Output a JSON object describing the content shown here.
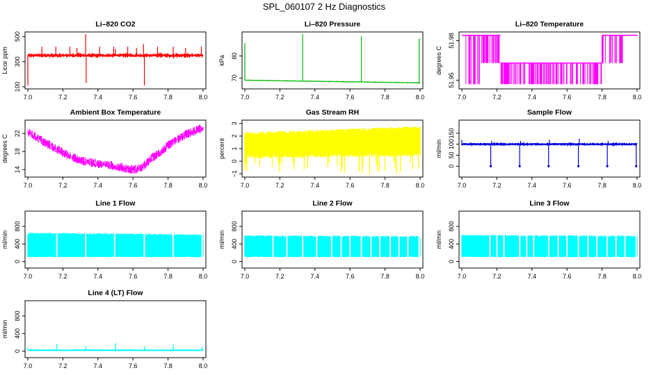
{
  "figure_title": "SPL_060107  2 Hz Diagnostics",
  "chart_data": [
    {
      "type": "line",
      "title": "Li–820 CO2",
      "ylabel": "Licor ppm",
      "color": "#ff0000",
      "xlim": [
        7.0,
        8.0
      ],
      "ylim": [
        100,
        520
      ],
      "xticks": [
        "7.0",
        "7.2",
        "7.4",
        "7.6",
        "7.8",
        "8.0"
      ],
      "yticks": [
        {
          "v": 100,
          "label": "100"
        },
        {
          "v": 300,
          "label": "300"
        },
        {
          "v": 500,
          "label": "500"
        }
      ],
      "series": {
        "baseline": 350,
        "noise": 12,
        "spikes": [
          {
            "x": 7.0,
            "y": 110
          },
          {
            "x": 7.08,
            "y": 420
          },
          {
            "x": 7.16,
            "y": 420
          },
          {
            "x": 7.24,
            "y": 420
          },
          {
            "x": 7.28,
            "y": 410
          },
          {
            "x": 7.33,
            "y": 520
          },
          {
            "x": 7.333,
            "y": 130
          },
          {
            "x": 7.41,
            "y": 420
          },
          {
            "x": 7.49,
            "y": 420
          },
          {
            "x": 7.5,
            "y": 400
          },
          {
            "x": 7.57,
            "y": 420
          },
          {
            "x": 7.62,
            "y": 410
          },
          {
            "x": 7.66,
            "y": 440
          },
          {
            "x": 7.665,
            "y": 110
          },
          {
            "x": 7.74,
            "y": 420
          },
          {
            "x": 7.83,
            "y": 420
          },
          {
            "x": 7.9,
            "y": 410
          },
          {
            "x": 7.99,
            "y": 420
          }
        ]
      }
    },
    {
      "type": "line",
      "title": "Li–820 Pressure",
      "ylabel": "kPa",
      "color": "#00bb00",
      "xlim": [
        7.0,
        8.0
      ],
      "ylim": [
        66,
        90
      ],
      "xticks": [
        "7.0",
        "7.2",
        "7.4",
        "7.6",
        "7.8",
        "8.0"
      ],
      "yticks": [
        {
          "v": 70,
          "label": "70"
        },
        {
          "v": 80,
          "label": "80"
        }
      ],
      "series": {
        "start": 69.0,
        "end": 67.8,
        "noise": 0.2,
        "spikes": [
          {
            "x": 7.0,
            "y": 86
          },
          {
            "x": 7.33,
            "y": 90
          },
          {
            "x": 7.665,
            "y": 89
          },
          {
            "x": 7.995,
            "y": 88
          }
        ]
      }
    },
    {
      "type": "line",
      "title": "Li–820 Temperature",
      "ylabel": "degrees C",
      "color": "#ff00ff",
      "xlim": [
        7.0,
        8.0
      ],
      "ylim": [
        51.945,
        51.985
      ],
      "xticks": [
        "7.0",
        "7.2",
        "7.4",
        "7.6",
        "7.8",
        "8.0"
      ],
      "yticks": [
        {
          "v": 51.95,
          "label": "51.95"
        },
        {
          "v": 51.98,
          "label": "51.98"
        }
      ],
      "series": {
        "levels": [
          51.947,
          51.963,
          51.984
        ],
        "segments": [
          {
            "from": 7.0,
            "to": 7.01,
            "level": 2
          },
          {
            "from": 7.02,
            "to": 7.1,
            "level": 2,
            "alt": 0
          },
          {
            "from": 7.1,
            "to": 7.22,
            "level": 2,
            "alt": 1
          },
          {
            "from": 7.22,
            "to": 7.8,
            "level": 1,
            "alt": 0
          },
          {
            "from": 7.8,
            "to": 7.92,
            "level": 2,
            "alt": 1
          },
          {
            "from": 7.92,
            "to": 8.0,
            "level": 2
          }
        ]
      }
    },
    {
      "type": "line",
      "title": "Ambient Box Temperature",
      "ylabel": "degrees C",
      "color": "#ff00ff",
      "xlim": [
        7.0,
        8.0
      ],
      "ylim": [
        12.8,
        24.5
      ],
      "xticks": [
        "7.0",
        "7.2",
        "7.4",
        "7.6",
        "7.8",
        "8.0"
      ],
      "yticks": [
        {
          "v": 14,
          "label": "14"
        },
        {
          "v": 18,
          "label": "18"
        },
        {
          "v": 22,
          "label": "22"
        }
      ],
      "series": {
        "x": [
          7.0,
          7.1,
          7.2,
          7.3,
          7.4,
          7.5,
          7.6,
          7.65,
          7.7,
          7.8,
          7.9,
          8.0
        ],
        "y": [
          22.5,
          20.2,
          18.0,
          16.2,
          15.5,
          15.0,
          14.2,
          14.6,
          16.5,
          19.5,
          22.0,
          23.5
        ],
        "noise": 1.0
      }
    },
    {
      "type": "area",
      "title": "Gas Stream RH",
      "ylabel": "percent",
      "color": "#ffff00",
      "xlim": [
        7.0,
        8.0
      ],
      "ylim": [
        -1.1,
        3.1
      ],
      "xticks": [
        "7.0",
        "7.2",
        "7.4",
        "7.6",
        "7.8",
        "8.0"
      ],
      "yticks": [
        {
          "v": -1,
          "label": "−1"
        },
        {
          "v": 0,
          "label": "0"
        },
        {
          "v": 1,
          "label": "1"
        },
        {
          "v": 2,
          "label": "2"
        },
        {
          "v": 3,
          "label": "3"
        }
      ],
      "series": {
        "low_start": 0.2,
        "low_end": 0.4,
        "high_start": 2.3,
        "high_end": 2.8,
        "dip_min": -1.0
      }
    },
    {
      "type": "line",
      "title": "Sample Flow",
      "ylabel": "ml/min",
      "color": "#0000dd",
      "xlim": [
        7.0,
        8.0
      ],
      "ylim": [
        -40,
        200
      ],
      "xticks": [
        "7.0",
        "7.2",
        "7.4",
        "7.6",
        "7.8",
        "8.0"
      ],
      "yticks": [
        {
          "v": 0,
          "label": "0"
        },
        {
          "v": 50,
          "label": "50"
        },
        {
          "v": 100,
          "label": "100"
        },
        {
          "v": 150,
          "label": "150"
        }
      ],
      "series": {
        "baseline": 100,
        "noise": 4,
        "spikes": [
          {
            "x": 7.0,
            "y": 120
          },
          {
            "x": 7.165,
            "y": 0
          },
          {
            "x": 7.17,
            "y": 115
          },
          {
            "x": 7.33,
            "y": 0
          },
          {
            "x": 7.335,
            "y": 115
          },
          {
            "x": 7.495,
            "y": 0
          },
          {
            "x": 7.5,
            "y": 120
          },
          {
            "x": 7.665,
            "y": 0
          },
          {
            "x": 7.67,
            "y": 125
          },
          {
            "x": 7.83,
            "y": 0
          },
          {
            "x": 7.835,
            "y": 115
          },
          {
            "x": 7.995,
            "y": 0
          }
        ]
      }
    },
    {
      "type": "area",
      "title": "Line 1 Flow",
      "ylabel": "ml/min",
      "color": "#00ffff",
      "xlim": [
        7.0,
        8.0
      ],
      "ylim": [
        -100,
        1100
      ],
      "xticks": [
        "7.0",
        "7.2",
        "7.4",
        "7.6",
        "7.8",
        "8.0"
      ],
      "yticks": [
        {
          "v": 0,
          "label": "0"
        },
        {
          "v": 400,
          "label": "400"
        },
        {
          "v": 800,
          "label": "800"
        }
      ],
      "series": {
        "low": 100,
        "high_start": 640,
        "high_end": 600,
        "gaps": [
          7.165,
          7.33,
          7.495,
          7.665,
          7.83,
          7.995
        ]
      }
    },
    {
      "type": "area",
      "title": "Line 2 Flow",
      "ylabel": "ml/min",
      "color": "#00ffff",
      "xlim": [
        7.0,
        8.0
      ],
      "ylim": [
        -100,
        1100
      ],
      "xticks": [
        "7.0",
        "7.2",
        "7.4",
        "7.6",
        "7.8",
        "8.0"
      ],
      "yticks": [
        {
          "v": 0,
          "label": "0"
        },
        {
          "v": 400,
          "label": "400"
        },
        {
          "v": 800,
          "label": "800"
        }
      ],
      "series": {
        "low": 100,
        "high_start": 580,
        "high_end": 560,
        "gaps": [
          7.16,
          7.24,
          7.33,
          7.41,
          7.495,
          7.55,
          7.6,
          7.665,
          7.72,
          7.77,
          7.83,
          7.88,
          7.93,
          7.995
        ]
      }
    },
    {
      "type": "area",
      "title": "Line 3 Flow",
      "ylabel": "ml/min",
      "color": "#00ffff",
      "xlim": [
        7.0,
        8.0
      ],
      "ylim": [
        -100,
        1100
      ],
      "xticks": [
        "7.0",
        "7.2",
        "7.4",
        "7.6",
        "7.8",
        "8.0"
      ],
      "yticks": [
        {
          "v": 0,
          "label": "0"
        },
        {
          "v": 400,
          "label": "400"
        },
        {
          "v": 800,
          "label": "800"
        }
      ],
      "series": {
        "low": 100,
        "high_start": 590,
        "high_end": 570,
        "gaps": [
          7.16,
          7.2,
          7.24,
          7.33,
          7.37,
          7.41,
          7.495,
          7.55,
          7.6,
          7.665,
          7.72,
          7.77,
          7.83,
          7.88,
          7.93,
          7.995
        ]
      }
    },
    {
      "type": "line",
      "title": "Line 4 (LT) Flow",
      "ylabel": "ml/min",
      "color": "#00ffff",
      "xlim": [
        7.0,
        8.0
      ],
      "ylim": [
        -100,
        1100
      ],
      "xticks": [
        "7.0",
        "7.2",
        "7.4",
        "7.6",
        "7.8",
        "8.0"
      ],
      "yticks": [
        {
          "v": 0,
          "label": "0"
        },
        {
          "v": 400,
          "label": "400"
        },
        {
          "v": 800,
          "label": "800"
        }
      ],
      "series": {
        "baseline": 20,
        "noise": 3,
        "spikes": [
          {
            "x": 7.0,
            "y": 80
          },
          {
            "x": 7.165,
            "y": 170
          },
          {
            "x": 7.33,
            "y": 120
          },
          {
            "x": 7.5,
            "y": 180
          },
          {
            "x": 7.665,
            "y": 110
          },
          {
            "x": 7.83,
            "y": 160
          },
          {
            "x": 7.995,
            "y": 100
          }
        ]
      }
    }
  ]
}
